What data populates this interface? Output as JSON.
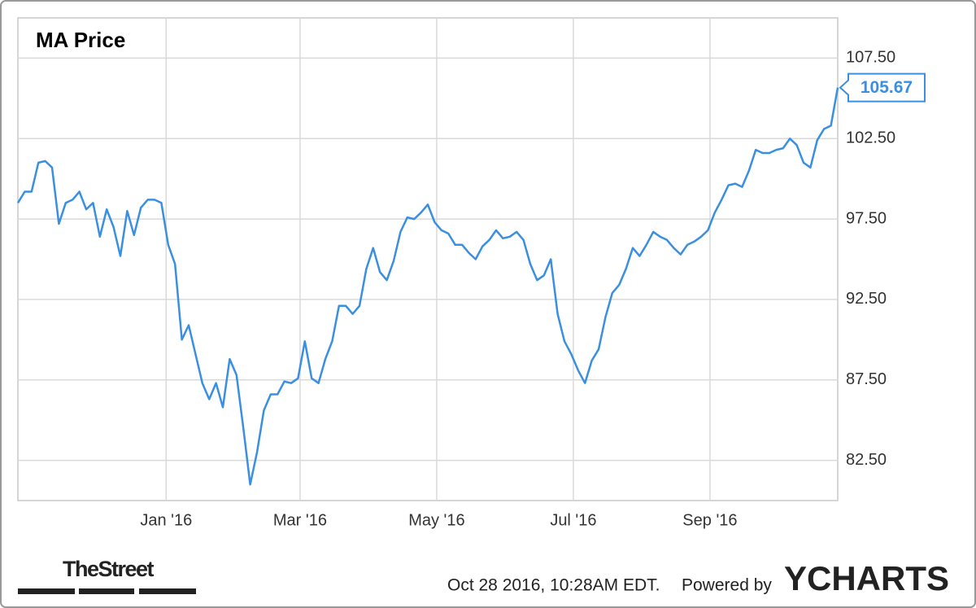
{
  "chart_data": {
    "type": "line",
    "title": "MA Price",
    "series": [
      {
        "name": "MA Price",
        "color": "#3a8fe0",
        "values": [
          98.5,
          99.2,
          99.2,
          101.0,
          101.1,
          100.7,
          97.2,
          98.5,
          98.7,
          99.2,
          98.1,
          98.5,
          96.4,
          98.1,
          97.0,
          95.2,
          98.0,
          96.5,
          98.2,
          98.7,
          98.7,
          98.5,
          95.9,
          94.7,
          90.0,
          90.9,
          89.1,
          87.3,
          86.3,
          87.3,
          85.8,
          88.8,
          87.8,
          84.5,
          81.0,
          83.0,
          85.6,
          86.6,
          86.6,
          87.4,
          87.3,
          87.6,
          89.9,
          87.6,
          87.3,
          88.8,
          89.9,
          92.1,
          92.1,
          91.6,
          92.1,
          94.4,
          95.7,
          94.2,
          93.7,
          94.9,
          96.7,
          97.6,
          97.5,
          97.9,
          98.4,
          97.3,
          96.8,
          96.6,
          95.9,
          95.9,
          95.4,
          95.0,
          95.8,
          96.2,
          96.8,
          96.3,
          96.4,
          96.7,
          96.2,
          94.7,
          93.7,
          94.0,
          95.0,
          91.6,
          89.9,
          89.1,
          88.1,
          87.3,
          88.7,
          89.4,
          91.4,
          92.9,
          93.4,
          94.4,
          95.7,
          95.2,
          95.9,
          96.7,
          96.4,
          96.2,
          95.7,
          95.3,
          95.9,
          96.1,
          96.4,
          96.8,
          97.9,
          98.7,
          99.6,
          99.7,
          99.5,
          100.5,
          101.8,
          101.6,
          101.6,
          101.8,
          101.9,
          102.5,
          102.1,
          101.0,
          100.7,
          102.4,
          103.1,
          103.3,
          105.67
        ]
      }
    ],
    "xlim": [
      0,
      120
    ],
    "xticks": [
      {
        "value": 21.7,
        "label": "Jan '16"
      },
      {
        "value": 41.3,
        "label": "Mar '16"
      },
      {
        "value": 61.3,
        "label": "May '16"
      },
      {
        "value": 81.3,
        "label": "Jul '16"
      },
      {
        "value": 101.3,
        "label": "Sep '16"
      }
    ],
    "ylim": [
      80,
      110
    ],
    "yticks": [
      {
        "value": 82.5,
        "label": "82.50"
      },
      {
        "value": 87.5,
        "label": "87.50"
      },
      {
        "value": 92.5,
        "label": "92.50"
      },
      {
        "value": 97.5,
        "label": "97.50"
      },
      {
        "value": 102.5,
        "label": "102.50"
      },
      {
        "value": 107.5,
        "label": "107.50"
      }
    ],
    "grid": true
  },
  "footer": {
    "timestamp": "Oct 28 2016, 10:28AM EDT.",
    "powered_by": "Powered by",
    "brand": "YCHARTS",
    "source_logo": "TheStreet"
  }
}
